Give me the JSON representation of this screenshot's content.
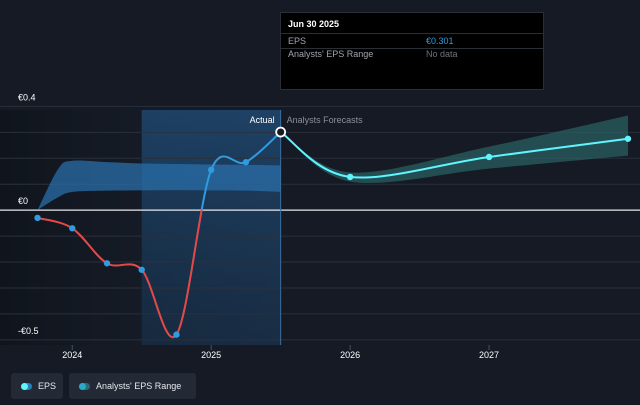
{
  "tooltip": {
    "date": "Jun 30 2025",
    "eps_label": "EPS",
    "eps_value": "€0.301",
    "range_label": "Analysts' EPS Range",
    "range_value": "No data"
  },
  "legend": {
    "eps": "EPS",
    "range": "Analysts' EPS Range"
  },
  "colors": {
    "background": "#151a24",
    "eps_negative": "#e24a4a",
    "eps_positive": "#2f9be0",
    "forecast_line": "#5ff5ff",
    "forecast_band": "#2a5f62",
    "range_band": "#2a6ea8",
    "tooltip_value": "#2f9be0",
    "no_data": "#6f737b"
  },
  "chart_data": {
    "type": "line",
    "y_ticks": [
      {
        "v": 0.4,
        "label": "€0.4"
      },
      {
        "v": 0,
        "label": "€0"
      },
      {
        "v": -0.5,
        "label": "-€0.5"
      }
    ],
    "x_ticks": [
      {
        "v": 2024.0,
        "label": "2024"
      },
      {
        "v": 2025.0,
        "label": "2025"
      },
      {
        "v": 2026.0,
        "label": "2026"
      },
      {
        "v": 2027.0,
        "label": "2027"
      }
    ],
    "ylim": [
      -0.52,
      0.44
    ],
    "xlim": [
      2023.48,
      2028.0
    ],
    "section_labels": {
      "actual": "Actual",
      "forecast": "Analysts Forecasts"
    },
    "actual_eps": [
      {
        "x": 2023.75,
        "y": -0.03
      },
      {
        "x": 2024.0,
        "y": -0.07
      },
      {
        "x": 2024.25,
        "y": -0.205
      },
      {
        "x": 2024.5,
        "y": -0.23
      },
      {
        "x": 2024.75,
        "y": -0.48
      },
      {
        "x": 2025.0,
        "y": 0.155
      },
      {
        "x": 2025.25,
        "y": 0.185
      },
      {
        "x": 2025.5,
        "y": 0.301
      }
    ],
    "forecast_eps": [
      {
        "x": 2025.5,
        "y": 0.301
      },
      {
        "x": 2026.0,
        "y": 0.128
      },
      {
        "x": 2027.0,
        "y": 0.205
      },
      {
        "x": 2028.0,
        "y": 0.275
      }
    ],
    "forecast_range": {
      "x": [
        2025.5,
        2026.0,
        2027.0,
        2028.0
      ],
      "high": [
        0.301,
        0.145,
        0.245,
        0.365
      ],
      "low": [
        0.301,
        0.11,
        0.16,
        0.21
      ]
    },
    "historical_range": {
      "x": [
        2023.75,
        2023.9,
        2024.0,
        2024.25,
        2024.5,
        2024.75,
        2025.0,
        2025.25,
        2025.5
      ],
      "high": [
        0.0,
        0.16,
        0.19,
        0.185,
        0.18,
        0.178,
        0.176,
        0.175,
        0.172
      ],
      "low": [
        0.0,
        0.05,
        0.07,
        0.075,
        0.076,
        0.077,
        0.076,
        0.075,
        0.07
      ]
    }
  }
}
